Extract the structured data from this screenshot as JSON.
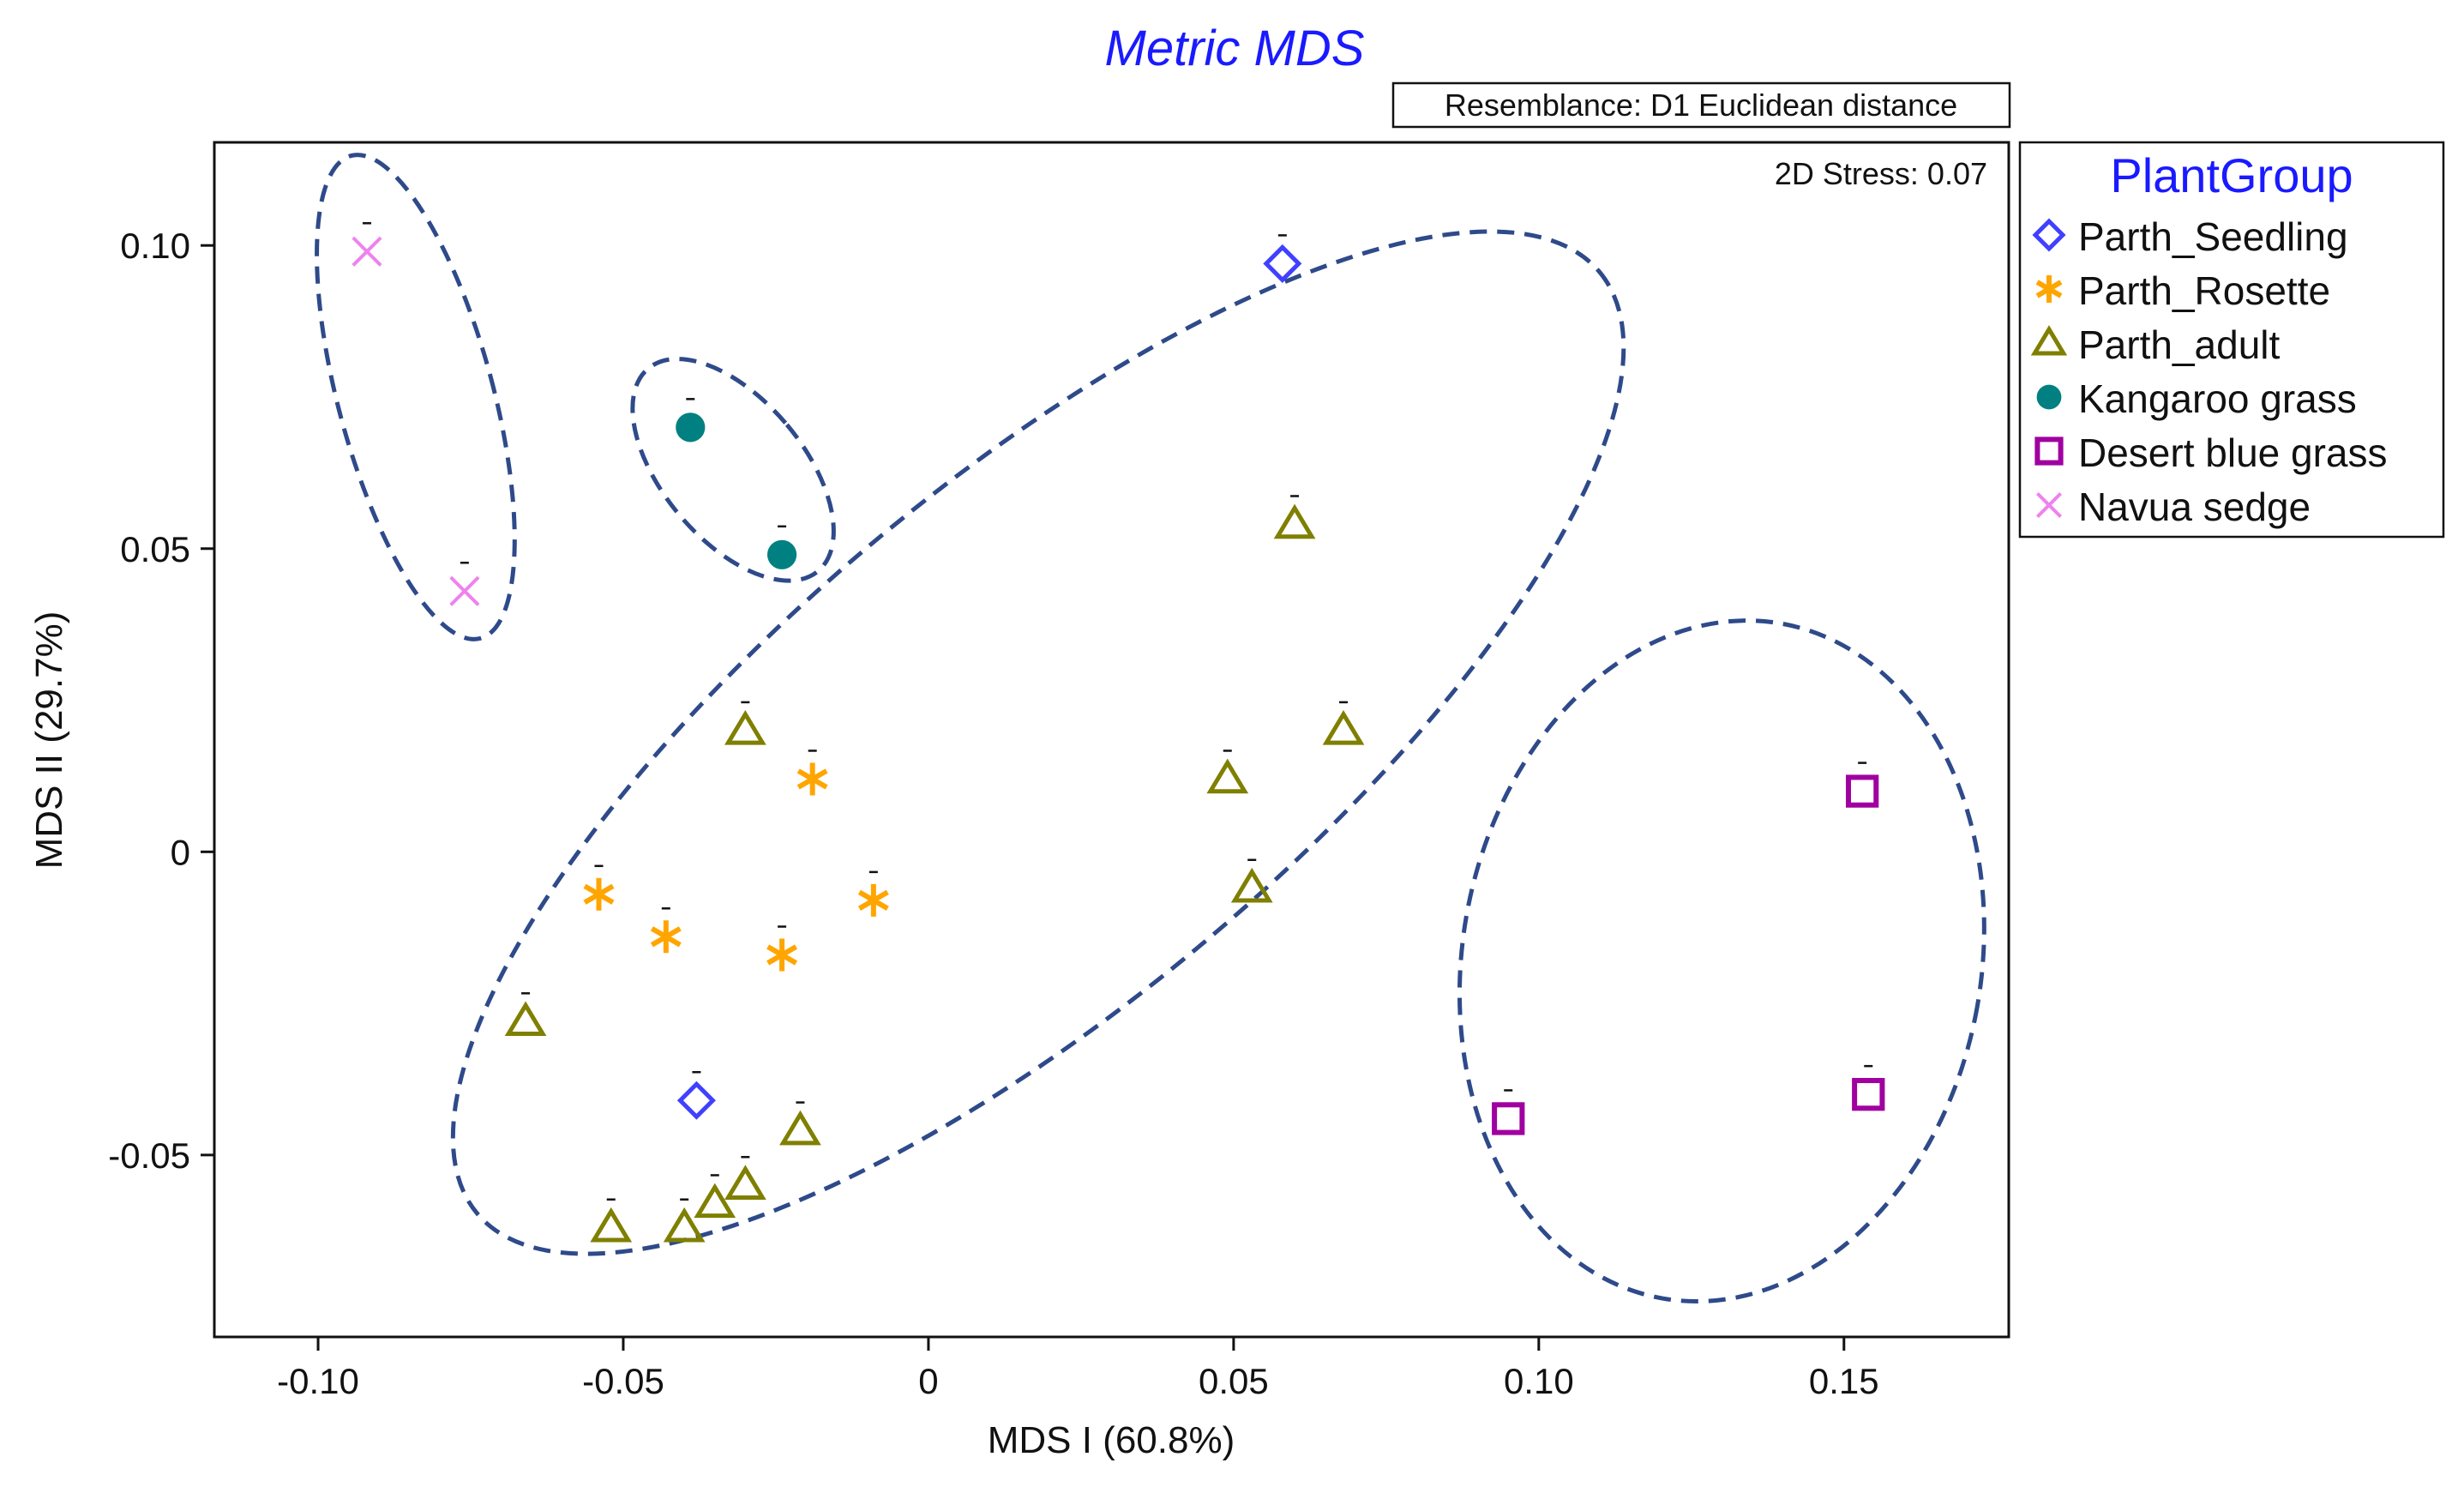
{
  "chart_data": {
    "type": "scatter",
    "title": "Metric MDS",
    "resemblance": "Resemblance: D1 Euclidean distance",
    "stress": "2D Stress: 0.07",
    "xlabel": "MDS I (60.8%)",
    "ylabel": "MDS II (29.7%)",
    "xlim": [
      -0.117,
      0.177
    ],
    "ylim": [
      -0.08,
      0.117
    ],
    "xticks": [
      -0.1,
      -0.05,
      0,
      0.05,
      0.1,
      0.15
    ],
    "xtick_labels": [
      "-0.10",
      "-0.05",
      "0",
      "0.05",
      "0.10",
      "0.15"
    ],
    "yticks": [
      0.1,
      0.05,
      0,
      -0.05
    ],
    "ytick_labels": [
      "0.10",
      "0.05",
      "0",
      "-0.05"
    ],
    "legend_title": "PlantGroup",
    "legend_position": "right",
    "series": [
      {
        "name": "Parth_Seedling",
        "marker": "diamond",
        "color": "#4040ff",
        "points": [
          [
            0.058,
            0.097
          ],
          [
            -0.038,
            -0.041
          ]
        ]
      },
      {
        "name": "Parth_Rosette",
        "marker": "asterisk",
        "color": "#ffa500",
        "points": [
          [
            -0.054,
            -0.007
          ],
          [
            -0.043,
            -0.014
          ],
          [
            -0.024,
            -0.017
          ],
          [
            -0.019,
            0.012
          ],
          [
            -0.009,
            -0.008
          ]
        ]
      },
      {
        "name": "Parth_adult",
        "marker": "triangle",
        "color": "#7f7f00",
        "points": [
          [
            -0.03,
            0.02
          ],
          [
            -0.066,
            -0.028
          ],
          [
            -0.021,
            -0.046
          ],
          [
            -0.03,
            -0.055
          ],
          [
            -0.035,
            -0.058
          ],
          [
            -0.04,
            -0.062
          ],
          [
            -0.052,
            -0.062
          ],
          [
            0.06,
            0.054
          ],
          [
            0.068,
            0.02
          ],
          [
            0.049,
            0.012
          ],
          [
            0.053,
            -0.006
          ]
        ]
      },
      {
        "name": "Kangaroo grass",
        "marker": "circle",
        "color": "#008080",
        "points": [
          [
            -0.039,
            0.07
          ],
          [
            -0.024,
            0.049
          ]
        ]
      },
      {
        "name": "Desert blue grass",
        "marker": "square",
        "color": "#a000a0",
        "points": [
          [
            0.095,
            -0.044
          ],
          [
            0.153,
            0.01
          ],
          [
            0.154,
            -0.04
          ]
        ]
      },
      {
        "name": "Navua sedge",
        "marker": "cross",
        "color": "#ee82ee",
        "points": [
          [
            -0.092,
            0.099
          ],
          [
            -0.076,
            0.043
          ]
        ]
      }
    ],
    "clusters": [
      {
        "name": "navua-cluster",
        "center": [
          -0.084,
          0.075
        ],
        "rx": 0.0127,
        "ry": 0.0412,
        "angle": -15
      },
      {
        "name": "kangaroo-cluster",
        "center": [
          -0.032,
          0.063
        ],
        "rx": 0.0115,
        "ry": 0.0218,
        "angle": -40
      },
      {
        "name": "parth-cluster",
        "center": [
          0.018,
          0.018
        ],
        "rx": 0.12,
        "ry": 0.0428,
        "angle": -40
      },
      {
        "name": "desert-cluster",
        "center": [
          0.13,
          -0.018
        ],
        "rx": 0.0425,
        "ry": 0.0565,
        "angle": 10
      }
    ],
    "cluster_color": "#2e4a8a",
    "grid": false
  }
}
